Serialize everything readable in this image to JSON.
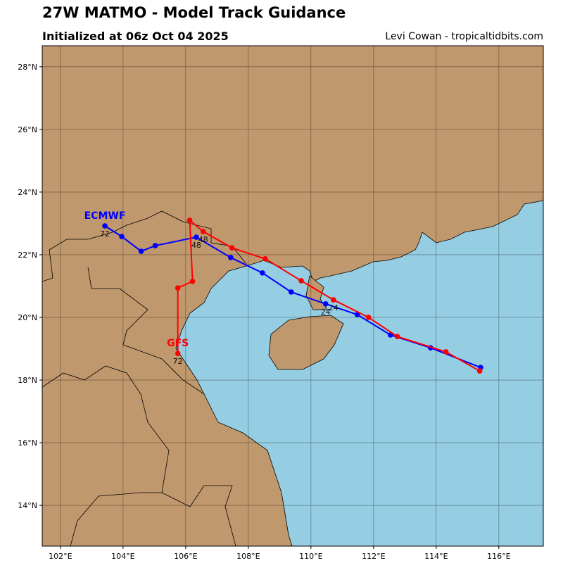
{
  "header": {
    "title": "27W MATMO - Model Track Guidance",
    "subtitle": "Initialized at 06z Oct 04 2025",
    "credit": "Levi Cowan - tropicaltidbits.com"
  },
  "map": {
    "lon_range": [
      101.42,
      117.42
    ],
    "lat_range": [
      12.7,
      28.67
    ],
    "lon_ticks": [
      102,
      104,
      106,
      108,
      110,
      112,
      114,
      116
    ],
    "lat_ticks": [
      14,
      16,
      18,
      20,
      22,
      24,
      26,
      28
    ],
    "land_color": "#c0986d",
    "ocean_color": "#95cde3",
    "grid": true
  },
  "tracks": [
    {
      "name": "ECMWF",
      "color": "#0000ff",
      "hours_labeled": [
        24,
        48,
        72
      ],
      "points": [
        [
          115.42,
          18.4
        ],
        [
          113.82,
          19.03
        ],
        [
          112.54,
          19.44
        ],
        [
          111.48,
          20.09
        ],
        [
          110.47,
          20.43
        ],
        [
          109.37,
          20.81
        ],
        [
          108.45,
          21.42
        ],
        [
          107.44,
          21.91
        ],
        [
          106.34,
          22.56
        ],
        [
          105.03,
          22.29
        ],
        [
          104.58,
          22.11
        ],
        [
          103.96,
          22.58
        ],
        [
          103.42,
          22.92
        ]
      ]
    },
    {
      "name": "GFS",
      "color": "#ff0000",
      "hours_labeled": [
        24,
        48,
        72
      ],
      "points": [
        [
          115.39,
          18.29
        ],
        [
          114.31,
          18.9
        ],
        [
          112.76,
          19.39
        ],
        [
          111.84,
          20.0
        ],
        [
          110.72,
          20.56
        ],
        [
          109.69,
          21.17
        ],
        [
          108.54,
          21.87
        ],
        [
          107.48,
          22.22
        ],
        [
          106.56,
          22.74
        ],
        [
          106.13,
          23.1
        ],
        [
          106.22,
          21.15
        ],
        [
          105.75,
          20.94
        ],
        [
          105.75,
          18.85
        ]
      ]
    }
  ]
}
